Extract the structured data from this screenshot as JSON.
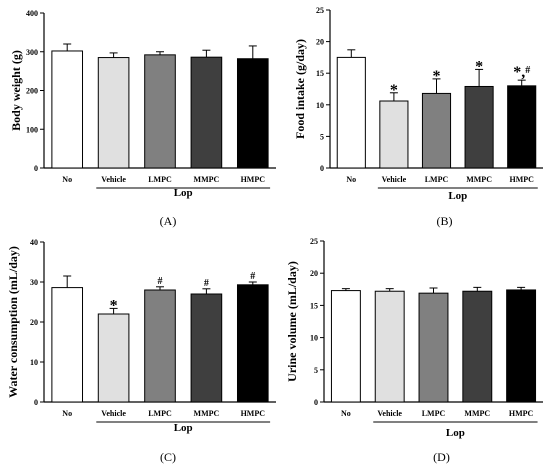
{
  "figure": {
    "colors": {
      "No": "#ffffff",
      "Vehicle": "#e0e0e0",
      "LMPC": "#808080",
      "MMPC": "#3f3f3f",
      "HMPC": "#000000"
    }
  },
  "chart_data": [
    {
      "type": "bar",
      "panel_label": "(A)",
      "ylabel": "Body weight (g)",
      "ylim": [
        0,
        400
      ],
      "yticks": [
        "0",
        "100",
        "200",
        "300",
        "400"
      ],
      "categories": [
        "No",
        "Vehicle",
        "LMPC",
        "MMPC",
        "HMPC"
      ],
      "group_label": "Lop",
      "values": [
        302,
        285,
        292,
        286,
        282
      ],
      "errors": [
        18,
        12,
        8,
        18,
        33
      ],
      "annotations": [
        "",
        "",
        "",
        "",
        ""
      ]
    },
    {
      "type": "bar",
      "panel_label": "(B)",
      "ylabel": "Food intake (g/day)",
      "ylim": [
        0,
        25
      ],
      "yticks": [
        "0",
        "5",
        "10",
        "15",
        "20",
        "25"
      ],
      "categories": [
        "No",
        "Vehicle",
        "LMPC",
        "MMPC",
        "HMPC"
      ],
      "group_label": "Lop",
      "values": [
        17.5,
        10.6,
        11.8,
        12.9,
        13.0
      ],
      "errors": [
        1.2,
        1.3,
        2.3,
        2.7,
        0.9
      ],
      "annotations": [
        "",
        "*",
        "*",
        "*",
        "*,#"
      ]
    },
    {
      "type": "bar",
      "panel_label": "(C)",
      "ylabel": "Water consumption (mL/day)",
      "ylim": [
        0,
        40
      ],
      "yticks": [
        "0",
        "10",
        "20",
        "30",
        "40"
      ],
      "categories": [
        "No",
        "Vehicle",
        "LMPC",
        "MMPC",
        "HMPC"
      ],
      "group_label": "Lop",
      "values": [
        28.6,
        22.0,
        28.0,
        27.0,
        29.3
      ],
      "errors": [
        2.9,
        1.4,
        0.8,
        1.3,
        0.7
      ],
      "annotations": [
        "",
        "*",
        "#",
        "#",
        "#"
      ]
    },
    {
      "type": "bar",
      "panel_label": "(D)",
      "ylabel": "Urine volume (mL/day)",
      "ylim": [
        0,
        25
      ],
      "yticks": [
        "0",
        "5",
        "10",
        "15",
        "20",
        "25"
      ],
      "categories": [
        "No",
        "Vehicle",
        "LMPC",
        "MMPC",
        "HMPC"
      ],
      "group_label": "Lop",
      "values": [
        17.3,
        17.2,
        16.9,
        17.2,
        17.4
      ],
      "errors": [
        0.3,
        0.4,
        0.8,
        0.6,
        0.4
      ],
      "annotations": [
        "",
        "",
        "",
        "",
        ""
      ]
    }
  ]
}
